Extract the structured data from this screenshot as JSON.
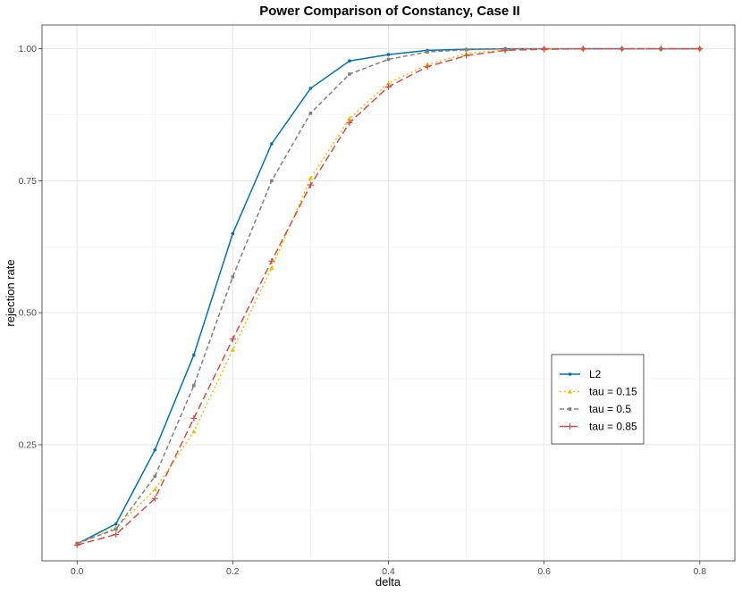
{
  "chart_data": {
    "type": "line",
    "title": "Power Comparison of Constancy, Case II",
    "xlabel": "delta",
    "ylabel": "rejection rate",
    "xlim": [
      -0.045,
      0.845
    ],
    "ylim": [
      0.03,
      1.045
    ],
    "x_ticks": [
      0.0,
      0.2,
      0.4,
      0.6,
      0.8
    ],
    "x_tick_labels": [
      "0.0",
      "0.2",
      "0.4",
      "0.6",
      "0.8"
    ],
    "y_ticks": [
      0.25,
      0.5,
      0.75,
      1.0
    ],
    "y_tick_labels": [
      "0.25",
      "0.50",
      "0.75",
      "1.00"
    ],
    "grid": true,
    "legend_position": "center-right",
    "x": [
      0.0,
      0.05,
      0.1,
      0.15,
      0.2,
      0.25,
      0.3,
      0.35,
      0.4,
      0.45,
      0.5,
      0.55,
      0.6,
      0.65,
      0.7,
      0.75,
      0.8
    ],
    "series": [
      {
        "name": "L2",
        "color": "#0072B2",
        "dash": "solid",
        "marker": "dot",
        "values": [
          0.062,
          0.1,
          0.24,
          0.42,
          0.65,
          0.82,
          0.925,
          0.977,
          0.989,
          0.997,
          0.999,
          1.0,
          1.0,
          1.0,
          1.0,
          1.0,
          1.0
        ]
      },
      {
        "name": "tau = 0.15",
        "color": "#E6C300",
        "dash": "dotted",
        "marker": "triangle",
        "values": [
          0.062,
          0.093,
          0.165,
          0.275,
          0.43,
          0.585,
          0.755,
          0.868,
          0.935,
          0.97,
          0.991,
          0.998,
          1.0,
          1.0,
          1.0,
          1.0,
          1.0
        ]
      },
      {
        "name": "tau = 0.5",
        "color": "#808080",
        "dash": "dashed",
        "marker": "square",
        "values": [
          0.063,
          0.09,
          0.19,
          0.362,
          0.568,
          0.75,
          0.878,
          0.952,
          0.98,
          0.994,
          0.998,
          1.0,
          1.0,
          1.0,
          1.0,
          1.0,
          1.0
        ]
      },
      {
        "name": "tau = 0.85",
        "color": "#D94B4B",
        "dash": "longdash",
        "marker": "plus",
        "values": [
          0.06,
          0.08,
          0.148,
          0.3,
          0.45,
          0.598,
          0.742,
          0.86,
          0.928,
          0.966,
          0.987,
          0.997,
          0.999,
          1.0,
          1.0,
          1.0,
          1.0
        ]
      }
    ]
  }
}
